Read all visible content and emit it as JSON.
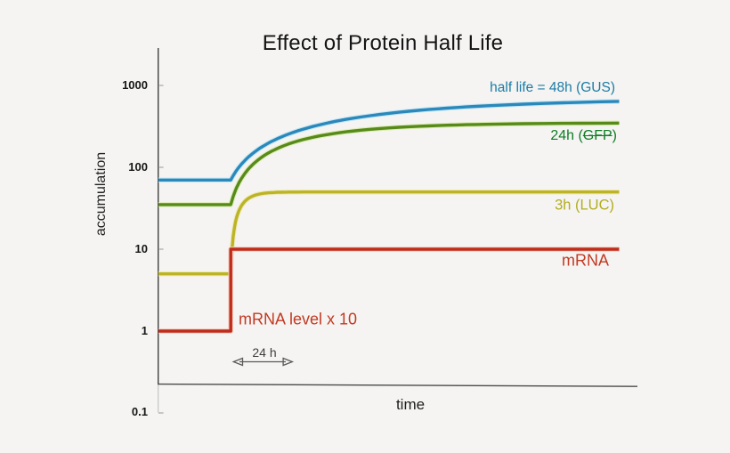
{
  "background_color": "#f5f4f2",
  "chart_data": {
    "type": "line",
    "title": "Effect of Protein Half Life",
    "xlabel": "time",
    "ylabel": "accumulation",
    "y_scale": "log",
    "y_ticks": [
      "1000",
      "100",
      "10",
      "1",
      "0.1"
    ],
    "y_tick_values": [
      1000,
      100,
      10,
      1,
      0.1
    ],
    "x_range_hours": [
      -30.1,
      161.6
    ],
    "legend_position": "right-of-curves",
    "grid": false,
    "annotations": {
      "mrna_note": "mRNA level x 10",
      "time_span_label": "24 h",
      "time_span_hours": 24
    },
    "series": [
      {
        "name": "half life = 48h (GUS)",
        "protein": "GUS",
        "half_life_hours": 48,
        "color": "#2a89ba",
        "halo_color": "#c9e7f6",
        "label_color": "#1b7ca6",
        "start_level": 70,
        "plateau_level": 700,
        "points": [
          [
            -30.1,
            70
          ],
          [
            0.0,
            70.0
          ],
          [
            0.5,
            74.53
          ],
          [
            1.0,
            79.03
          ],
          [
            1.5,
            83.5
          ],
          [
            2.0,
            87.93
          ],
          [
            2.5,
            92.34
          ],
          [
            3.0,
            96.71
          ],
          [
            3.5,
            101.05
          ],
          [
            4.0,
            105.36
          ],
          [
            4.5,
            109.64
          ],
          [
            5.0,
            113.88
          ],
          [
            5.5,
            118.1
          ],
          [
            6.0,
            122.29
          ],
          [
            6.5,
            126.44
          ],
          [
            7.0,
            130.57
          ],
          [
            7.5,
            134.67
          ],
          [
            8.0,
            138.73
          ],
          [
            9.0,
            146.78
          ],
          [
            10.0,
            154.71
          ],
          [
            11.0,
            162.53
          ],
          [
            12.0,
            170.24
          ],
          [
            13.0,
            177.83
          ],
          [
            14.0,
            185.32
          ],
          [
            15.0,
            192.7
          ],
          [
            16.0,
            199.97
          ],
          [
            17.0,
            207.14
          ],
          [
            18.0,
            214.2
          ],
          [
            19.0,
            221.17
          ],
          [
            20.0,
            228.03
          ],
          [
            21.0,
            234.8
          ],
          [
            22.0,
            241.47
          ],
          [
            23.0,
            248.04
          ],
          [
            24.0,
            254.52
          ],
          [
            25.0,
            260.91
          ],
          [
            26.0,
            267.2
          ],
          [
            28.0,
            279.53
          ],
          [
            30.0,
            291.5
          ],
          [
            32.0,
            303.12
          ],
          [
            34.0,
            314.42
          ],
          [
            36.0,
            325.4
          ],
          [
            38.0,
            336.06
          ],
          [
            40.0,
            346.42
          ],
          [
            42.0,
            356.49
          ],
          [
            44.0,
            366.27
          ],
          [
            46.0,
            375.77
          ],
          [
            48.0,
            385.0
          ],
          [
            50.0,
            393.97
          ],
          [
            54.0,
            411.14
          ],
          [
            58.0,
            427.36
          ],
          [
            62.0,
            442.66
          ],
          [
            66.0,
            457.1
          ],
          [
            70.0,
            470.73
          ],
          [
            74.0,
            483.6
          ],
          [
            78.0,
            495.75
          ],
          [
            82.0,
            507.21
          ],
          [
            86.0,
            518.03
          ],
          [
            90.0,
            528.25
          ],
          [
            94.0,
            537.88
          ],
          [
            98.0,
            546.98
          ],
          [
            102.0,
            555.57
          ],
          [
            106.0,
            563.68
          ],
          [
            114.0,
            578.55
          ],
          [
            122.0,
            591.8
          ],
          [
            130.0,
            603.61
          ],
          [
            138.0,
            614.12
          ],
          [
            146.0,
            623.49
          ],
          [
            154.0,
            631.84
          ],
          [
            161.6,
            638.92
          ]
        ]
      },
      {
        "name": "24h (GFP)",
        "label_prefix": "24h (",
        "label_struck": "GFP",
        "label_suffix": ")",
        "protein": "GFP",
        "half_life_hours": 24,
        "color": "#588a1b",
        "halo_color": "#dcedb4",
        "label_color": "#0f7d26",
        "start_level": 35,
        "plateau_level": 350,
        "points": [
          [
            -30.1,
            35
          ],
          [
            0.0,
            35.0
          ],
          [
            0.5,
            39.52
          ],
          [
            1.0,
            43.97
          ],
          [
            1.5,
            48.35
          ],
          [
            2.0,
            52.68
          ],
          [
            2.5,
            56.94
          ],
          [
            3.0,
            61.14
          ],
          [
            3.5,
            65.29
          ],
          [
            4.0,
            69.37
          ],
          [
            4.5,
            73.39
          ],
          [
            5.0,
            77.36
          ],
          [
            5.5,
            81.26
          ],
          [
            6.0,
            85.12
          ],
          [
            6.5,
            88.92
          ],
          [
            7.0,
            92.66
          ],
          [
            7.5,
            96.35
          ],
          [
            8.0,
            99.98
          ],
          [
            9.0,
            107.1
          ],
          [
            10.0,
            114.02
          ],
          [
            11.0,
            120.73
          ],
          [
            12.0,
            127.26
          ],
          [
            13.0,
            133.6
          ],
          [
            14.0,
            139.76
          ],
          [
            15.0,
            145.75
          ],
          [
            16.0,
            151.56
          ],
          [
            17.0,
            157.21
          ],
          [
            18.0,
            162.7
          ],
          [
            19.0,
            168.03
          ],
          [
            20.0,
            173.21
          ],
          [
            21.0,
            178.25
          ],
          [
            22.0,
            183.13
          ],
          [
            23.0,
            187.88
          ],
          [
            24.0,
            192.5
          ],
          [
            25.0,
            196.98
          ],
          [
            26.0,
            201.34
          ],
          [
            28.0,
            209.68
          ],
          [
            30.0,
            217.56
          ],
          [
            32.0,
            224.99
          ],
          [
            34.0,
            232.01
          ],
          [
            36.0,
            238.63
          ],
          [
            38.0,
            244.88
          ],
          [
            40.0,
            250.78
          ],
          [
            42.0,
            256.35
          ],
          [
            44.0,
            261.61
          ],
          [
            46.0,
            266.57
          ],
          [
            48.0,
            271.25
          ],
          [
            50.0,
            275.67
          ],
          [
            54.0,
            283.78
          ],
          [
            58.0,
            291.0
          ],
          [
            62.0,
            297.44
          ],
          [
            66.0,
            303.17
          ],
          [
            70.0,
            308.28
          ],
          [
            74.0,
            312.83
          ],
          [
            78.0,
            316.89
          ],
          [
            82.0,
            320.5
          ],
          [
            86.0,
            323.72
          ],
          [
            90.0,
            326.59
          ],
          [
            94.0,
            329.14
          ],
          [
            98.0,
            331.42
          ],
          [
            102.0,
            333.44
          ],
          [
            106.0,
            335.25
          ],
          [
            114.0,
            338.29
          ],
          [
            122.0,
            340.71
          ],
          [
            130.0,
            342.63
          ],
          [
            138.0,
            344.15
          ],
          [
            146.0,
            345.35
          ],
          [
            154.0,
            346.31
          ],
          [
            161.6,
            347.04
          ]
        ]
      },
      {
        "name": "3h (LUC)",
        "protein": "LUC",
        "half_life_hours": 3,
        "color": "#bcb424",
        "halo_color": "#eeeabb",
        "label_color": "#b3ad21",
        "start_level": 5,
        "plateau_level": 50,
        "points": [
          [
            -30.1,
            5
          ],
          [
            0.0,
            5.0
          ],
          [
            0.5,
            9.91
          ],
          [
            1.0,
            14.28
          ],
          [
            1.5,
            18.18
          ],
          [
            2.0,
            21.65
          ],
          [
            2.5,
            24.74
          ],
          [
            3.0,
            27.5
          ],
          [
            3.5,
            29.95
          ],
          [
            4.0,
            32.14
          ],
          [
            4.5,
            34.09
          ],
          [
            5.0,
            35.83
          ],
          [
            5.5,
            37.37
          ],
          [
            6.0,
            38.75
          ],
          [
            6.5,
            39.98
          ],
          [
            7.0,
            41.07
          ],
          [
            7.5,
            42.05
          ],
          [
            8.0,
            42.91
          ],
          [
            9.0,
            44.38
          ],
          [
            10.0,
            45.54
          ],
          [
            11.0,
            46.46
          ],
          [
            12.0,
            47.19
          ],
          [
            13.0,
            47.77
          ],
          [
            14.0,
            48.23
          ],
          [
            15.0,
            48.59
          ],
          [
            16.0,
            48.88
          ],
          [
            17.0,
            49.11
          ],
          [
            18.0,
            49.3
          ],
          [
            19.0,
            49.44
          ],
          [
            20.0,
            49.56
          ],
          [
            21.0,
            49.65
          ],
          [
            22.0,
            49.72
          ],
          [
            23.0,
            49.78
          ],
          [
            24.0,
            49.82
          ],
          [
            25.0,
            49.86
          ],
          [
            26.0,
            49.89
          ],
          [
            28.0,
            49.93
          ],
          [
            30.0,
            49.96
          ],
          [
            32.0,
            49.97
          ],
          [
            34.0,
            49.98
          ],
          [
            36.0,
            49.99
          ],
          [
            38.0,
            49.99
          ],
          [
            40.0,
            50.0
          ],
          [
            42.0,
            50.0
          ],
          [
            44.0,
            50.0
          ],
          [
            46.0,
            50.0
          ],
          [
            48.0,
            50.0
          ],
          [
            50.0,
            50.0
          ],
          [
            54.0,
            50.0
          ],
          [
            58.0,
            50.0
          ],
          [
            62.0,
            50.0
          ],
          [
            66.0,
            50.0
          ],
          [
            70.0,
            50.0
          ],
          [
            74.0,
            50.0
          ],
          [
            78.0,
            50.0
          ],
          [
            82.0,
            50.0
          ],
          [
            86.0,
            50.0
          ],
          [
            90.0,
            50.0
          ],
          [
            94.0,
            50.0
          ],
          [
            98.0,
            50.0
          ],
          [
            102.0,
            50.0
          ],
          [
            106.0,
            50.0
          ],
          [
            114.0,
            50.0
          ],
          [
            122.0,
            50.0
          ],
          [
            130.0,
            50.0
          ],
          [
            138.0,
            50.0
          ],
          [
            146.0,
            50.0
          ],
          [
            154.0,
            50.0
          ],
          [
            161.6,
            50.0
          ]
        ]
      },
      {
        "name": "mRNA",
        "protein": "mRNA",
        "color": "#bf2c1a",
        "halo_color": "#f2c9be",
        "label_color": "#c23a23",
        "start_level": 1,
        "plateau_level": 10,
        "points": [
          [
            -30.1,
            1
          ],
          [
            0,
            1
          ],
          [
            0,
            10
          ],
          [
            161.6,
            10
          ]
        ]
      }
    ]
  }
}
